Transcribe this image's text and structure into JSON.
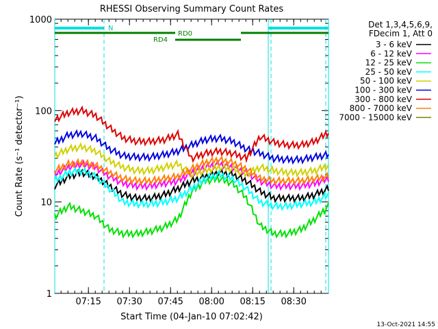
{
  "chart_data": {
    "type": "line",
    "title": "RHESSI Observing Summary Count Rates",
    "xlabel": "Start Time (04-Jan-10 07:02:42)",
    "ylabel": "Count Rate (s⁻¹ detector⁻¹)",
    "yscale": "log",
    "ylim": [
      1,
      1000
    ],
    "xlim_minutes": [
      0,
      100
    ],
    "x_tick_labels": [
      "07:15",
      "07:30",
      "07:45",
      "08:00",
      "08:15",
      "08:30"
    ],
    "x_tick_minutes": [
      12.3,
      27.3,
      42.3,
      57.3,
      72.3,
      87.3
    ],
    "y_tick_labels": [
      "1",
      "10",
      "100",
      "1000"
    ],
    "y_tick_values": [
      1,
      10,
      100,
      1000
    ],
    "legend_header": [
      "Det 1,3,4,5,6,9,",
      "FDecim 1, Att 0"
    ],
    "series": [
      {
        "name": "3 - 6 keV",
        "color": "#000000",
        "values": [
          15,
          19,
          21,
          19,
          15,
          12,
          11,
          11,
          12,
          14,
          17,
          19,
          21,
          20,
          17,
          13,
          11,
          11,
          11,
          12,
          14
        ]
      },
      {
        "name": "6 - 12 keV",
        "color": "#ff00ff",
        "values": [
          20,
          24,
          26,
          24,
          19,
          16,
          15,
          15,
          16,
          17,
          21,
          24,
          26,
          24,
          21,
          17,
          15,
          15,
          15,
          16,
          18
        ]
      },
      {
        "name": "12 - 25 keV",
        "color": "#00e000",
        "values": [
          7,
          9,
          8,
          7,
          5,
          4.5,
          4.5,
          4.8,
          5.3,
          6.5,
          13,
          17,
          18,
          16,
          11,
          5.5,
          4.5,
          4.5,
          5,
          6.5,
          9
        ]
      },
      {
        "name": "25 - 50 keV",
        "color": "#00ffff",
        "values": [
          17,
          21,
          22,
          19,
          14,
          10,
          9.5,
          9.5,
          10,
          11,
          14,
          18,
          20,
          18,
          14,
          10,
          9,
          9,
          9.5,
          10,
          12
        ]
      },
      {
        "name": "50 - 100 keV",
        "color": "#d0d000",
        "values": [
          32,
          38,
          40,
          36,
          28,
          24,
          22,
          22,
          24,
          26,
          20,
          22,
          24,
          23,
          20,
          24,
          22,
          21,
          21,
          22,
          25
        ]
      },
      {
        "name": "100 - 300 keV",
        "color": "#0000dd",
        "values": [
          44,
          54,
          56,
          50,
          38,
          32,
          31,
          31,
          33,
          36,
          42,
          48,
          50,
          46,
          38,
          34,
          30,
          29,
          29,
          31,
          33
        ]
      },
      {
        "name": "300 - 800 keV",
        "color": "#dd0000",
        "values": [
          80,
          95,
          100,
          88,
          65,
          50,
          46,
          46,
          48,
          55,
          30,
          34,
          36,
          34,
          30,
          52,
          45,
          42,
          42,
          46,
          58
        ]
      },
      {
        "name": "800 - 7000 keV",
        "color": "#ff8000",
        "values": [
          22,
          26,
          27,
          25,
          21,
          18,
          17,
          17,
          18,
          19,
          23,
          27,
          29,
          27,
          23,
          18,
          17,
          17,
          17,
          18,
          19
        ]
      },
      {
        "name": "7000 - 15000 keV",
        "color": "#808000",
        "values": []
      }
    ],
    "series_x_minutes": [
      0,
      5,
      10,
      15,
      20,
      25,
      30,
      35,
      40,
      45,
      50,
      55,
      60,
      65,
      70,
      75,
      80,
      85,
      90,
      95,
      100
    ],
    "annotations": {
      "night_label": "N",
      "rd0_label": "RD0",
      "rd4_label": "RD4"
    }
  },
  "footer_timestamp": "13-Oct-2021 14:55"
}
